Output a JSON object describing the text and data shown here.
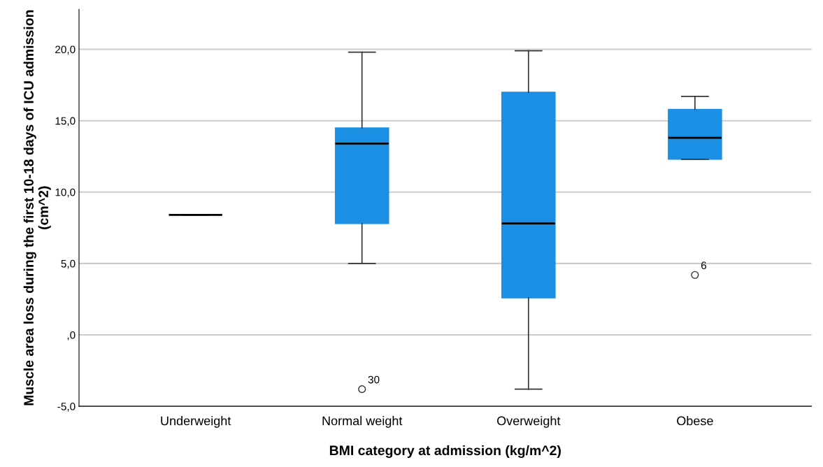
{
  "chart_data": {
    "type": "box",
    "xlabel": "BMI category at admission (kg/m^2)",
    "ylabel": "Muscle area loss during the first 10-18 days of ICU admission (cm^2)",
    "categories": [
      "Underweight",
      "Normal weight",
      "Overweight",
      "Obese"
    ],
    "series": [
      {
        "color": "#1a8fe3",
        "boxes": [
          {
            "low": 8.4,
            "q1": 8.4,
            "median": 8.4,
            "q3": 8.4,
            "high": 8.4
          },
          {
            "low": 5.0,
            "q1": 7.8,
            "median": 13.4,
            "q3": 14.5,
            "high": 19.8,
            "outliers": [
              -3.8
            ]
          },
          {
            "low": -3.8,
            "q1": 2.6,
            "median": 7.8,
            "q3": 17.0,
            "high": 19.9
          },
          {
            "low": 12.3,
            "q1": 12.3,
            "median": 13.8,
            "q3": 15.8,
            "high": 16.7,
            "outliers": [
              4.2
            ]
          }
        ]
      }
    ],
    "annotations": [
      "30",
      "6"
    ],
    "ylim": [
      -5,
      22.8
    ],
    "yticks": [
      {
        "value": -5,
        "label": "-5,0"
      },
      {
        "value": 0,
        "label": ",0"
      },
      {
        "value": 5,
        "label": "5,0"
      },
      {
        "value": 10,
        "label": "10,0"
      },
      {
        "value": 15,
        "label": "15,0"
      },
      {
        "value": 20,
        "label": "20,0"
      }
    ],
    "grid": "y",
    "legend": false
  }
}
